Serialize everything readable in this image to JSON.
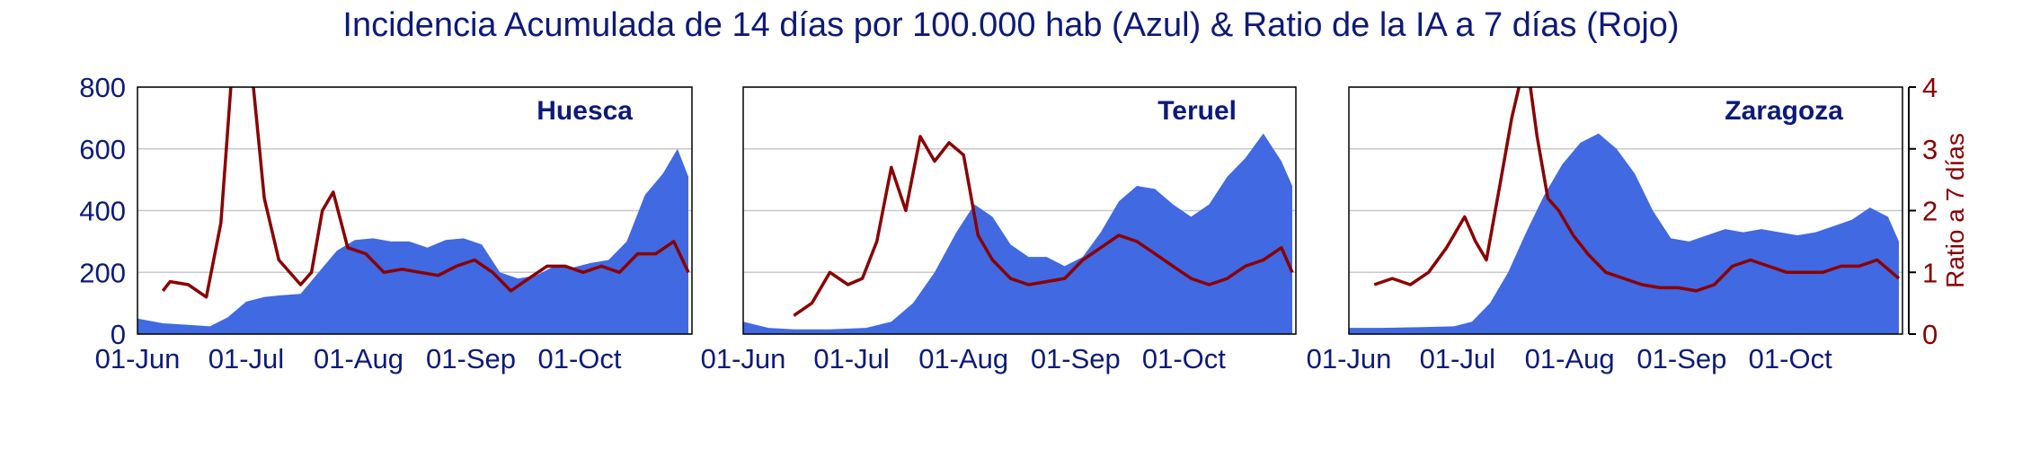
{
  "title": "Incidencia Acumulada de 14 días por 100.000 hab (Azul) & Ratio de la IA a 7 días (Rojo)",
  "colors": {
    "area": "#4169e1",
    "ratio": "#8b0000",
    "text": "#0d1a7a",
    "grid": "#c8c8c8"
  },
  "chart_data": [
    {
      "type": "area",
      "title": "Huesca",
      "x_tick_labels": [
        "01-Jun",
        "01-Jul",
        "01-Aug",
        "01-Sep",
        "01-Oct"
      ],
      "y_ticks": [
        0,
        200,
        400,
        600,
        800
      ],
      "ylim": [
        0,
        800
      ],
      "y2label": "Ratio a 7 días",
      "y2_ticks": [
        0,
        1,
        2,
        3,
        4
      ],
      "y2lim": [
        0,
        4
      ],
      "grid": true,
      "series": [
        {
          "axis": "left",
          "x": [
            "2020-06-01",
            "2020-06-08",
            "2020-06-15",
            "2020-06-21",
            "2020-06-26",
            "2020-07-01",
            "2020-07-06",
            "2020-07-10",
            "2020-07-16",
            "2020-07-21",
            "2020-07-26",
            "2020-07-31",
            "2020-08-05",
            "2020-08-10",
            "2020-08-15",
            "2020-08-20",
            "2020-08-25",
            "2020-08-30",
            "2020-09-04",
            "2020-09-09",
            "2020-09-14",
            "2020-09-19",
            "2020-09-24",
            "2020-09-29",
            "2020-10-04",
            "2020-10-09",
            "2020-10-14",
            "2020-10-19",
            "2020-10-24",
            "2020-10-28",
            "2020-10-31"
          ],
          "values": [
            50,
            35,
            30,
            25,
            55,
            105,
            120,
            125,
            130,
            200,
            270,
            305,
            310,
            300,
            300,
            280,
            305,
            310,
            290,
            200,
            180,
            190,
            220,
            215,
            230,
            240,
            300,
            450,
            520,
            600,
            510
          ]
        },
        {
          "axis": "right",
          "x": [
            "2020-06-08",
            "2020-06-10",
            "2020-06-15",
            "2020-06-20",
            "2020-06-24",
            "2020-06-28",
            "2020-07-01",
            "2020-07-03",
            "2020-07-06",
            "2020-07-10",
            "2020-07-16",
            "2020-07-19",
            "2020-07-22",
            "2020-07-25",
            "2020-07-29",
            "2020-08-03",
            "2020-08-08",
            "2020-08-13",
            "2020-08-18",
            "2020-08-23",
            "2020-08-28",
            "2020-09-02",
            "2020-09-07",
            "2020-09-12",
            "2020-09-17",
            "2020-09-22",
            "2020-09-27",
            "2020-10-02",
            "2020-10-07",
            "2020-10-12",
            "2020-10-17",
            "2020-10-22",
            "2020-10-27",
            "2020-10-31"
          ],
          "values": [
            0.7,
            0.85,
            0.8,
            0.6,
            1.8,
            5.0,
            5.0,
            4.0,
            2.2,
            1.2,
            0.8,
            1.0,
            2.0,
            2.3,
            1.4,
            1.3,
            1.0,
            1.05,
            1.0,
            0.95,
            1.1,
            1.2,
            1.0,
            0.7,
            0.9,
            1.1,
            1.1,
            1.0,
            1.1,
            1.0,
            1.3,
            1.3,
            1.5,
            1.0
          ]
        }
      ]
    },
    {
      "type": "area",
      "title": "Teruel",
      "x_tick_labels": [
        "01-Jun",
        "01-Jul",
        "01-Aug",
        "01-Sep",
        "01-Oct"
      ],
      "y_ticks": [
        0,
        200,
        400,
        600,
        800
      ],
      "ylim": [
        0,
        800
      ],
      "y2label": "Ratio a 7 días",
      "y2_ticks": [
        0,
        1,
        2,
        3,
        4
      ],
      "y2lim": [
        0,
        4
      ],
      "grid": true,
      "series": [
        {
          "axis": "left",
          "x": [
            "2020-06-01",
            "2020-06-08",
            "2020-06-15",
            "2020-06-25",
            "2020-07-05",
            "2020-07-12",
            "2020-07-18",
            "2020-07-24",
            "2020-07-30",
            "2020-08-04",
            "2020-08-09",
            "2020-08-14",
            "2020-08-19",
            "2020-08-24",
            "2020-08-29",
            "2020-09-03",
            "2020-09-08",
            "2020-09-13",
            "2020-09-18",
            "2020-09-23",
            "2020-09-28",
            "2020-10-03",
            "2020-10-08",
            "2020-10-13",
            "2020-10-18",
            "2020-10-23",
            "2020-10-28",
            "2020-10-31"
          ],
          "values": [
            40,
            20,
            15,
            15,
            20,
            40,
            100,
            200,
            330,
            420,
            380,
            290,
            250,
            250,
            220,
            250,
            330,
            430,
            480,
            470,
            420,
            380,
            420,
            510,
            570,
            650,
            560,
            480
          ]
        },
        {
          "axis": "right",
          "x": [
            "2020-06-15",
            "2020-06-20",
            "2020-06-25",
            "2020-06-30",
            "2020-07-04",
            "2020-07-08",
            "2020-07-12",
            "2020-07-16",
            "2020-07-20",
            "2020-07-24",
            "2020-07-28",
            "2020-08-01",
            "2020-08-05",
            "2020-08-09",
            "2020-08-14",
            "2020-08-19",
            "2020-08-24",
            "2020-08-29",
            "2020-09-03",
            "2020-09-08",
            "2020-09-13",
            "2020-09-18",
            "2020-09-23",
            "2020-09-28",
            "2020-10-03",
            "2020-10-08",
            "2020-10-13",
            "2020-10-18",
            "2020-10-23",
            "2020-10-28",
            "2020-10-31"
          ],
          "values": [
            0.3,
            0.5,
            1.0,
            0.8,
            0.9,
            1.5,
            2.7,
            2.0,
            3.2,
            2.8,
            3.1,
            2.9,
            1.6,
            1.2,
            0.9,
            0.8,
            0.85,
            0.9,
            1.2,
            1.4,
            1.6,
            1.5,
            1.3,
            1.1,
            0.9,
            0.8,
            0.9,
            1.1,
            1.2,
            1.4,
            1.0
          ]
        }
      ]
    },
    {
      "type": "area",
      "title": "Zaragoza",
      "x_tick_labels": [
        "01-Jun",
        "01-Jul",
        "01-Aug",
        "01-Sep",
        "01-Oct"
      ],
      "y_ticks": [
        0,
        200,
        400,
        600,
        800
      ],
      "ylim": [
        0,
        800
      ],
      "y2label": "Ratio a 7 días",
      "y2_ticks": [
        0,
        1,
        2,
        3,
        4
      ],
      "y2lim": [
        0,
        4
      ],
      "grid": true,
      "series": [
        {
          "axis": "left",
          "x": [
            "2020-06-01",
            "2020-06-10",
            "2020-06-20",
            "2020-06-30",
            "2020-07-05",
            "2020-07-10",
            "2020-07-15",
            "2020-07-20",
            "2020-07-25",
            "2020-07-30",
            "2020-08-04",
            "2020-08-09",
            "2020-08-14",
            "2020-08-19",
            "2020-08-24",
            "2020-08-29",
            "2020-09-03",
            "2020-09-08",
            "2020-09-13",
            "2020-09-18",
            "2020-09-23",
            "2020-09-28",
            "2020-10-03",
            "2020-10-08",
            "2020-10-13",
            "2020-10-18",
            "2020-10-23",
            "2020-10-28",
            "2020-10-31"
          ],
          "values": [
            20,
            20,
            22,
            25,
            40,
            100,
            200,
            330,
            450,
            550,
            620,
            650,
            600,
            520,
            400,
            310,
            300,
            320,
            340,
            330,
            340,
            330,
            320,
            330,
            350,
            370,
            410,
            380,
            300
          ]
        },
        {
          "axis": "right",
          "x": [
            "2020-06-08",
            "2020-06-13",
            "2020-06-18",
            "2020-06-23",
            "2020-06-28",
            "2020-07-03",
            "2020-07-06",
            "2020-07-09",
            "2020-07-13",
            "2020-07-16",
            "2020-07-20",
            "2020-07-23",
            "2020-07-26",
            "2020-07-29",
            "2020-08-02",
            "2020-08-06",
            "2020-08-11",
            "2020-08-16",
            "2020-08-21",
            "2020-08-26",
            "2020-08-31",
            "2020-09-05",
            "2020-09-10",
            "2020-09-15",
            "2020-09-20",
            "2020-09-25",
            "2020-09-30",
            "2020-10-05",
            "2020-10-10",
            "2020-10-15",
            "2020-10-20",
            "2020-10-25",
            "2020-10-31"
          ],
          "values": [
            0.8,
            0.9,
            0.8,
            1.0,
            1.4,
            1.9,
            1.5,
            1.2,
            2.5,
            3.5,
            4.5,
            3.2,
            2.2,
            2.0,
            1.6,
            1.3,
            1.0,
            0.9,
            0.8,
            0.75,
            0.75,
            0.7,
            0.8,
            1.1,
            1.2,
            1.1,
            1.0,
            1.0,
            1.0,
            1.1,
            1.1,
            1.2,
            0.9
          ]
        }
      ]
    }
  ]
}
